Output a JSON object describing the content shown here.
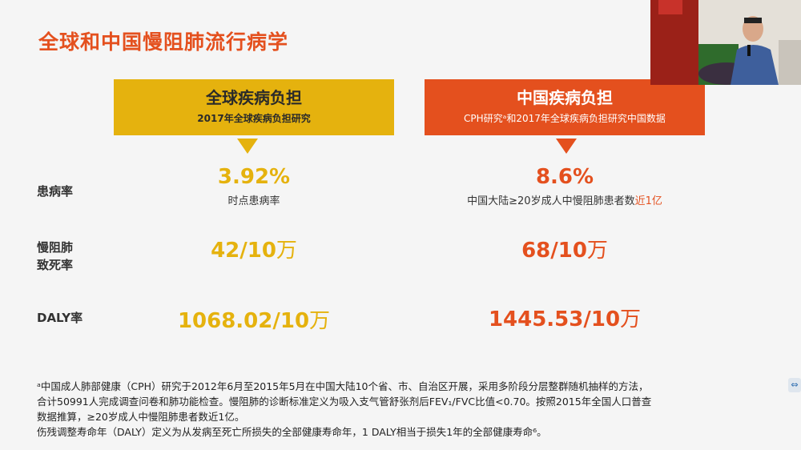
{
  "title": "全球和中国慢阻肺流行病学",
  "global": {
    "heading": "全球疾病负担",
    "subheading": "2017年全球疾病负担研究",
    "prevalence_value": "3.92%",
    "prevalence_desc": "时点患病率",
    "mortality_number": "42/10",
    "mortality_unit": "万",
    "daly_number": "1068.02/10",
    "daly_unit": "万"
  },
  "china": {
    "heading": "中国疾病负担",
    "subheading": "CPH研究ᵃ和2017年全球疾病负担研究中国数据",
    "prevalence_value": "8.6%",
    "prevalence_desc_main": "中国大陆≥20岁成人中慢阻肺患者数",
    "prevalence_desc_highlight": "近1亿",
    "mortality_number": "68/10",
    "mortality_unit": "万",
    "daly_number": "1445.53/10",
    "daly_unit": "万"
  },
  "rows": {
    "prevalence_label": "患病率",
    "mortality_label_line1": "慢阻肺",
    "mortality_label_line2": "致死率",
    "daly_label": "DALY率"
  },
  "footnotes": {
    "line1": "ᵃ中国成人肺部健康（CPH）研究于2012年6月至2015年5月在中国大陆10个省、市、自治区开展，采用多阶段分层整群随机抽样的方法，",
    "line2": "合计50991人完成调查问卷和肺功能检查。慢阻肺的诊断标准定义为吸入支气管舒张剂后FEV₁/FVC比值<0.70。按照2015年全国人口普查",
    "line3": "数据推算，≥20岁成人中慢阻肺患者数近1亿。",
    "line4": "伤残调整寿命年（DALY）定义为从发病至死亡所损失的全部健康寿命年，1 DALY相当于损失1年的全部健康寿命⁶。"
  },
  "colors": {
    "accent_orange": "#e4501e",
    "accent_gold": "#e5b20e"
  }
}
